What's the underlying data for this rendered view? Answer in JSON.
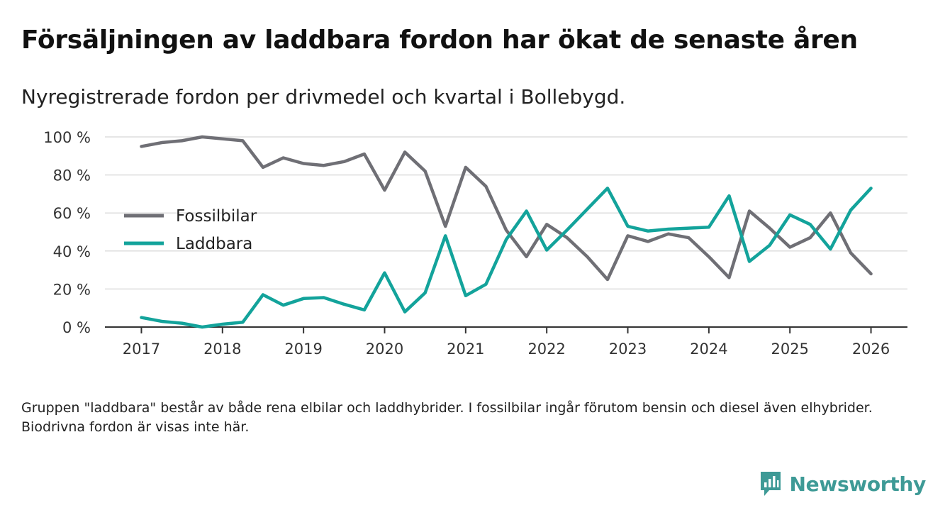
{
  "header": {
    "title": "Försäljningen av laddbara fordon har ökat de senaste åren",
    "subtitle": "Nyregistrerade fordon per drivmedel och kvartal i Bollebygd."
  },
  "footer": {
    "note": "Gruppen \"laddbara\" består av både rena elbilar och laddhybrider. I fossilbilar ingår förutom bensin och diesel även elhybrider. Biodrivna fordon är visas inte här."
  },
  "brand": {
    "name": "Newsworthy",
    "icon": "newsworthy-logo-icon"
  },
  "colors": {
    "fossil": "#6f6f75",
    "laddbara": "#13a39b",
    "grid": "#dddddd",
    "axis": "#333333"
  },
  "chart_data": {
    "type": "line",
    "title": "Försäljningen av laddbara fordon har ökat de senaste åren",
    "xlabel": "",
    "ylabel": "",
    "ylim": [
      0,
      100
    ],
    "xlim": [
      2016.55,
      2026.45
    ],
    "yticks": [
      0,
      20,
      40,
      60,
      80,
      100
    ],
    "ytick_labels": [
      "0 %",
      "20 %",
      "40 %",
      "60 %",
      "80 %",
      "100 %"
    ],
    "xticks": [
      2017,
      2018,
      2019,
      2020,
      2021,
      2022,
      2023,
      2024,
      2025,
      2026
    ],
    "xtick_labels": [
      "2017",
      "2018",
      "2019",
      "2020",
      "2021",
      "2022",
      "2023",
      "2024",
      "2025",
      "2026"
    ],
    "grid": true,
    "legend_position": "middle-left",
    "x": [
      2017.0,
      2017.25,
      2017.5,
      2017.75,
      2018.0,
      2018.25,
      2018.5,
      2018.75,
      2019.0,
      2019.25,
      2019.5,
      2019.75,
      2020.0,
      2020.25,
      2020.5,
      2020.75,
      2021.0,
      2021.25,
      2021.5,
      2021.75,
      2022.0,
      2022.25,
      2022.5,
      2022.75,
      2023.0,
      2023.25,
      2023.5,
      2023.75,
      2024.0,
      2024.25,
      2024.5,
      2024.75,
      2025.0,
      2025.25,
      2025.5,
      2025.75,
      2026.0
    ],
    "series": [
      {
        "name": "Fossilbilar",
        "color": "#6f6f75",
        "values": [
          95,
          97,
          98,
          100,
          99,
          98,
          84,
          89,
          86,
          85,
          87,
          91,
          72,
          92,
          82,
          53,
          84,
          74,
          51,
          37,
          54,
          47,
          37,
          25,
          48,
          45,
          49,
          47,
          37,
          26,
          61,
          52,
          42,
          47,
          60,
          39,
          28
        ]
      },
      {
        "name": "Laddbara",
        "color": "#13a39b",
        "values": [
          5,
          3,
          2,
          0,
          1.5,
          2.5,
          17,
          11.5,
          15,
          15.5,
          12,
          9,
          28.5,
          8,
          18,
          48,
          16.5,
          22.5,
          46,
          61,
          40.5,
          51,
          62,
          73,
          53,
          50.5,
          51.5,
          52,
          52.5,
          69,
          34.5,
          43,
          59,
          54,
          41,
          61.5,
          73
        ]
      }
    ]
  }
}
